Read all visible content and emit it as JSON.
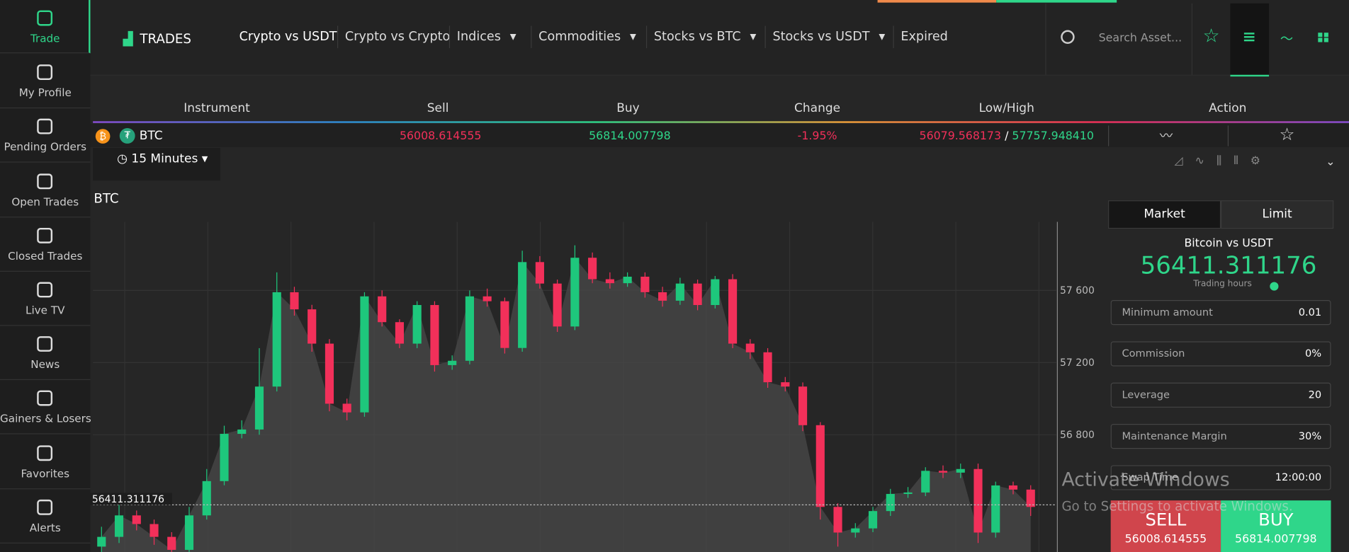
{
  "sidebar": {
    "items": [
      {
        "label": "Trade",
        "active": true
      },
      {
        "label": "My Profile"
      },
      {
        "label": "Pending Orders"
      },
      {
        "label": "Open Trades"
      },
      {
        "label": "Closed Trades"
      },
      {
        "label": "Live TV"
      },
      {
        "label": "News"
      },
      {
        "label": "Gainers & Losers"
      },
      {
        "label": "Favorites"
      },
      {
        "label": "Alerts"
      }
    ]
  },
  "header": {
    "title": "TRADES",
    "nav": [
      {
        "label": "Crypto vs USDT",
        "active": true
      },
      {
        "label": "Crypto vs Crypto"
      },
      {
        "label": "Indices",
        "dropdown": true
      },
      {
        "label": "Commodities",
        "dropdown": true
      },
      {
        "label": "Stocks vs BTC",
        "dropdown": true
      },
      {
        "label": "Stocks vs USDT",
        "dropdown": true
      },
      {
        "label": "Expired"
      }
    ],
    "search_placeholder": "Search Asset..."
  },
  "table": {
    "columns": [
      "Instrument",
      "Sell",
      "Buy",
      "Change",
      "Low/High",
      "Action"
    ],
    "rows": [
      {
        "instrument": "BTC",
        "sell": "56008.614555",
        "buy": "56814.007798",
        "change": "-1.95%",
        "low": "56079.568173",
        "separator": "/",
        "high": "57757.948410"
      }
    ]
  },
  "chart": {
    "title": "BTC",
    "timeframe": "15 Minutes",
    "ylim": [
      56150,
      57980
    ],
    "yticks": [
      {
        "value": 56800,
        "label": "56 800"
      },
      {
        "value": 57200,
        "label": "57 200"
      },
      {
        "value": 57600,
        "label": "57 600"
      }
    ],
    "current_price": {
      "value": 56411.311176,
      "label": "56411.311176"
    },
    "open": [
      56180,
      56234,
      56353,
      56305,
      56234,
      56162,
      56353,
      56543,
      56805,
      56829,
      57067,
      57590,
      57495,
      57305,
      56972,
      56924,
      57567,
      57424,
      57305,
      57519,
      57186,
      57210,
      57567,
      57540,
      57281,
      57757,
      57638,
      57400,
      57781,
      57662,
      57640,
      57676,
      57590,
      57543,
      57638,
      57519,
      57662,
      57305,
      57257,
      57091,
      57067,
      56853,
      56400,
      56258,
      56281,
      56377,
      56472,
      56480,
      56600,
      56590,
      56610,
      56258,
      56519,
      56496
    ],
    "high": [
      56290,
      56420,
      56380,
      56330,
      56260,
      56400,
      56610,
      56850,
      56880,
      57280,
      57700,
      57620,
      57520,
      57330,
      57000,
      57590,
      57600,
      57440,
      57540,
      57540,
      57240,
      57600,
      57610,
      57560,
      57820,
      57790,
      57660,
      57850,
      57810,
      57700,
      57700,
      57700,
      57620,
      57670,
      57660,
      57680,
      57690,
      57330,
      57280,
      57120,
      57090,
      56870,
      56420,
      56310,
      56400,
      56500,
      56510,
      56620,
      56630,
      56640,
      56640,
      56540,
      56540,
      56520
    ],
    "low": [
      56150,
      56200,
      56270,
      56190,
      56140,
      56140,
      56330,
      56520,
      56780,
      56800,
      57040,
      57460,
      57260,
      56930,
      56880,
      56900,
      57400,
      57280,
      57280,
      57150,
      57160,
      57190,
      57510,
      57250,
      57260,
      57610,
      57370,
      57380,
      57640,
      57610,
      57620,
      57560,
      57510,
      57520,
      57490,
      57500,
      57280,
      57220,
      57060,
      57040,
      56820,
      56330,
      56180,
      56230,
      56260,
      56350,
      56450,
      56460,
      56560,
      56560,
      56200,
      56230,
      56470,
      56350
    ],
    "close": [
      56234,
      56353,
      56305,
      56234,
      56162,
      56353,
      56543,
      56805,
      56829,
      57067,
      57590,
      57495,
      57305,
      56972,
      56924,
      57567,
      57424,
      57305,
      57519,
      57186,
      57210,
      57567,
      57540,
      57281,
      57757,
      57638,
      57400,
      57781,
      57662,
      57640,
      57676,
      57590,
      57543,
      57638,
      57519,
      57662,
      57305,
      57257,
      57091,
      57067,
      56853,
      56400,
      56258,
      56281,
      56377,
      56472,
      56480,
      56600,
      56590,
      56610,
      56258,
      56519,
      56496,
      56400
    ],
    "up_color": "#1ec77c",
    "down_color": "#f2305a"
  },
  "order_panel": {
    "tabs": [
      "Market",
      "Limit"
    ],
    "pair": "Bitcoin vs USDT",
    "price": "56411.311176",
    "hours": "Trading hours",
    "fields": [
      {
        "label": "Minimum amount",
        "value": "0.01"
      },
      {
        "label": "Commission",
        "value": "0%"
      },
      {
        "label": "Leverage",
        "value": "20"
      },
      {
        "label": "Maintenance Margin",
        "value": "30%"
      },
      {
        "label": "Swap Time",
        "value": "12:00:00"
      }
    ],
    "sell": {
      "label": "SELL",
      "price": "56008.614555"
    },
    "buy": {
      "label": "BUY",
      "price": "56814.007798"
    }
  },
  "watermark": {
    "title": "Activate Windows",
    "subtitle": "Go to Settings to activate Windows."
  }
}
